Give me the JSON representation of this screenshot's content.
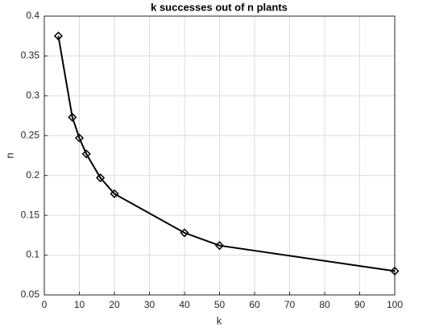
{
  "chart_data": {
    "type": "line",
    "title": "k successes out of n plants",
    "x_label": "k",
    "y_label": "n",
    "x": [
      4,
      8,
      10,
      12,
      16,
      20,
      40,
      50,
      100
    ],
    "values": [
      0.375,
      0.273,
      0.247,
      0.227,
      0.197,
      0.177,
      0.128,
      0.112,
      0.08
    ],
    "color": "#000000",
    "xlim": [
      0,
      100
    ],
    "xticks": [
      0,
      10,
      20,
      30,
      40,
      50,
      60,
      70,
      80,
      90,
      100
    ],
    "ylim": [
      0.05,
      0.4
    ],
    "yticks": [
      0.05,
      0.1,
      0.15,
      0.2,
      0.25,
      0.3,
      0.35,
      0.4
    ],
    "grid": true
  }
}
